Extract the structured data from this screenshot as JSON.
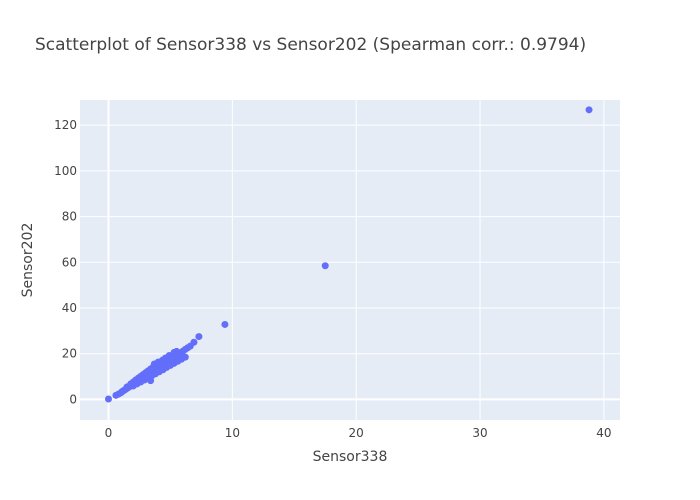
{
  "chart_data": {
    "type": "scatter",
    "title": "Scatterplot of Sensor338 vs Sensor202 (Spearman corr.: 0.9794)",
    "xlabel": "Sensor338",
    "ylabel": "Sensor202",
    "xlim": [
      -2.3,
      41.3
    ],
    "ylim": [
      -9,
      131
    ],
    "xticks": [
      0,
      10,
      20,
      30,
      40
    ],
    "yticks": [
      0,
      20,
      40,
      60,
      80,
      100,
      120
    ],
    "grid": true,
    "colors": {
      "marker": "#636efa",
      "plot_bg": "#e5ecf6",
      "grid": "#ffffff",
      "text": "#444444"
    },
    "points": [
      [
        0.0,
        0.2
      ],
      [
        0.6,
        1.8
      ],
      [
        0.8,
        2.3
      ],
      [
        1.0,
        2.9
      ],
      [
        1.1,
        3.4
      ],
      [
        1.2,
        3.8
      ],
      [
        1.3,
        4.1
      ],
      [
        1.4,
        4.5
      ],
      [
        1.5,
        4.9
      ],
      [
        1.6,
        5.2
      ],
      [
        1.7,
        5.6
      ],
      [
        1.8,
        5.9
      ],
      [
        1.9,
        6.3
      ],
      [
        2.0,
        6.7
      ],
      [
        2.1,
        7.0
      ],
      [
        2.2,
        7.4
      ],
      [
        2.3,
        7.8
      ],
      [
        2.4,
        8.1
      ],
      [
        2.5,
        8.5
      ],
      [
        2.6,
        8.9
      ],
      [
        2.7,
        9.2
      ],
      [
        2.8,
        9.6
      ],
      [
        2.9,
        10.0
      ],
      [
        3.0,
        10.3
      ],
      [
        3.1,
        10.7
      ],
      [
        3.2,
        11.1
      ],
      [
        3.3,
        11.4
      ],
      [
        3.4,
        11.8
      ],
      [
        3.5,
        12.2
      ],
      [
        3.6,
        12.5
      ],
      [
        3.7,
        12.9
      ],
      [
        3.8,
        13.3
      ],
      [
        3.9,
        13.6
      ],
      [
        4.0,
        14.0
      ],
      [
        4.1,
        14.4
      ],
      [
        4.2,
        14.7
      ],
      [
        4.3,
        15.1
      ],
      [
        4.4,
        15.5
      ],
      [
        4.5,
        15.8
      ],
      [
        4.6,
        16.2
      ],
      [
        4.8,
        16.9
      ],
      [
        5.0,
        17.6
      ],
      [
        5.2,
        18.3
      ],
      [
        5.4,
        19.0
      ],
      [
        5.6,
        19.7
      ],
      [
        5.8,
        20.4
      ],
      [
        6.0,
        21.1
      ],
      [
        6.2,
        21.9
      ],
      [
        6.4,
        22.6
      ],
      [
        6.6,
        23.3
      ],
      [
        1.5,
        5.5
      ],
      [
        1.8,
        6.8
      ],
      [
        2.0,
        7.6
      ],
      [
        2.2,
        8.5
      ],
      [
        2.4,
        9.3
      ],
      [
        2.6,
        10.1
      ],
      [
        2.8,
        10.9
      ],
      [
        3.0,
        11.7
      ],
      [
        3.2,
        12.5
      ],
      [
        3.4,
        13.3
      ],
      [
        3.6,
        14.1
      ],
      [
        3.8,
        14.9
      ],
      [
        4.0,
        15.7
      ],
      [
        4.2,
        16.5
      ],
      [
        4.4,
        17.3
      ],
      [
        4.6,
        18.1
      ],
      [
        4.9,
        19.2
      ],
      [
        5.3,
        20.6
      ],
      [
        2.0,
        5.9
      ],
      [
        2.3,
        6.8
      ],
      [
        2.6,
        7.6
      ],
      [
        2.9,
        8.5
      ],
      [
        3.2,
        9.4
      ],
      [
        3.5,
        10.3
      ],
      [
        3.8,
        11.2
      ],
      [
        4.1,
        12.1
      ],
      [
        4.4,
        13.0
      ],
      [
        4.7,
        14.0
      ],
      [
        5.0,
        14.9
      ],
      [
        5.3,
        15.8
      ],
      [
        5.6,
        16.7
      ],
      [
        5.9,
        17.6
      ],
      [
        6.2,
        18.5
      ],
      [
        3.4,
        8.2
      ],
      [
        4.0,
        16.3
      ],
      [
        3.7,
        15.5
      ],
      [
        5.5,
        21.0
      ],
      [
        6.9,
        25.0
      ],
      [
        7.3,
        27.5
      ],
      [
        9.4,
        32.8
      ],
      [
        17.5,
        58.5
      ],
      [
        38.8,
        126.7
      ]
    ]
  }
}
